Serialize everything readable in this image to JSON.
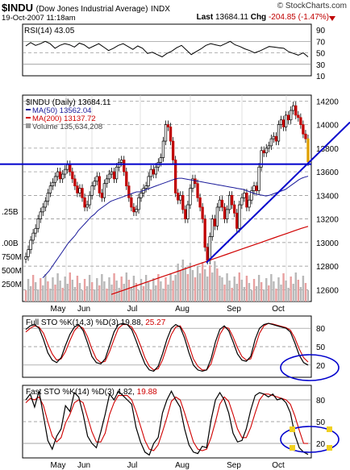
{
  "header": {
    "symbol": "$INDU",
    "name": "(Dow Jones Industrial Average)",
    "exchange": "INDX",
    "brand": "© StockCharts.com",
    "date": "19-Oct-2007 11:18am",
    "last_label": "Last",
    "last_value": "13684.11",
    "chg_label": "Chg",
    "chg_value": "-204.85 (-1.47%)"
  },
  "chart_data": [
    {
      "type": "line",
      "panel": "rsi",
      "legend": "RSI(14) 43.05",
      "ylim": [
        10,
        100
      ],
      "yticks": [
        "90",
        "70",
        "50",
        "30",
        "10"
      ],
      "values": [
        62,
        68,
        63,
        66,
        70,
        66,
        58,
        63,
        66,
        64,
        60,
        67,
        64,
        58,
        62,
        66,
        60,
        54,
        58,
        63,
        66,
        61,
        56,
        62,
        58,
        49,
        51,
        47,
        43,
        49,
        53,
        59,
        63,
        55,
        47,
        52,
        57,
        63,
        66,
        64,
        62,
        66,
        70,
        64,
        61,
        57,
        54,
        50,
        53,
        57,
        61,
        60,
        59,
        58,
        52,
        49,
        46,
        50,
        43
      ]
    },
    {
      "type": "candlestick",
      "panel": "price",
      "legend": [
        "$INDU (Daily) 13684.11",
        "MA(50) 13562.04",
        "MA(200) 13137.72",
        "Volume 135,634,208"
      ],
      "ylim": [
        12500,
        14250
      ],
      "yticks": [
        "14200",
        "14000",
        "13800",
        "13600",
        "13400",
        "13200",
        "13000",
        "12800",
        "12600"
      ],
      "left_axis_labels": [
        ".25B",
        ".00B",
        "750M",
        "500M",
        "250M"
      ],
      "months": [
        "May",
        "Jun",
        "Jul",
        "Aug",
        "Sep",
        "Oct"
      ],
      "close": [
        12880,
        12940,
        13020,
        13080,
        13120,
        13200,
        13260,
        13300,
        13350,
        13420,
        13480,
        13510,
        13560,
        13600,
        13540,
        13580,
        13620,
        13660,
        13600,
        13540,
        13480,
        13420,
        13460,
        13380,
        13300,
        13320,
        13400,
        13480,
        13520,
        13560,
        13420,
        13380,
        13500,
        13540,
        13580,
        13600,
        13540,
        13640,
        13680,
        13700,
        13600,
        13480,
        13380,
        13300,
        13260,
        13280,
        13380,
        13420,
        13460,
        13480,
        13560,
        13620,
        13580,
        13640,
        13680,
        13720,
        13860,
        14000,
        13980,
        13860,
        13700,
        13420,
        13360,
        13400,
        13280,
        13200,
        13320,
        13460,
        13540,
        13500,
        13380,
        13300,
        13200,
        12960,
        12850,
        13050,
        13200,
        13140,
        13300,
        13360,
        13300,
        13200,
        13280,
        13400,
        13320,
        13250,
        13120,
        13320,
        13380,
        13420,
        13300,
        13360,
        13440,
        13480,
        13440,
        13640,
        13780,
        13760,
        13800,
        13820,
        13880,
        13900,
        13860,
        14000,
        14040,
        13980,
        14080,
        14040,
        14120,
        14160,
        14080,
        14060,
        14000,
        13920,
        13880,
        13684
      ],
      "ma50": [
        12700,
        12730,
        12760,
        12800,
        12840,
        12880,
        12920,
        12960,
        13000,
        13030,
        13060,
        13100,
        13130,
        13160,
        13190,
        13220,
        13240,
        13270,
        13290,
        13310,
        13330,
        13350,
        13360,
        13370,
        13380,
        13390,
        13400,
        13410,
        13420,
        13430,
        13430,
        13440,
        13450,
        13460,
        13470,
        13480,
        13490,
        13500,
        13510,
        13520,
        13530,
        13540,
        13545,
        13545,
        13540,
        13535,
        13530,
        13525,
        13520,
        13515,
        13510,
        13505,
        13500,
        13495,
        13490,
        13485,
        13480,
        13475,
        13470,
        13465,
        13460,
        13455,
        13450,
        13440,
        13430,
        13420,
        13410,
        13405,
        13400,
        13395,
        13400,
        13410,
        13420,
        13430,
        13440,
        13450,
        13470,
        13490,
        13510,
        13530,
        13545,
        13555,
        13562
      ],
      "ma200": [
        12560,
        12580,
        12600,
        12620,
        12640,
        12660,
        12680,
        12700,
        12720,
        12740,
        12760,
        12780,
        12800,
        12820,
        12840,
        12860,
        12880,
        12900,
        12920,
        12940,
        12960,
        12980,
        13000,
        13020,
        13040,
        13060,
        13080,
        13100,
        13120,
        13137
      ]
    },
    {
      "type": "line",
      "panel": "full-sto",
      "legend": [
        "Full STO %K(14,3)",
        "%D(3)",
        "19.88",
        "25.27"
      ],
      "ylim": [
        0,
        100
      ],
      "yticks": [
        "80",
        "50",
        "20"
      ],
      "series": [
        {
          "name": "%K(14,3)",
          "values": [
            78,
            84,
            86,
            80,
            62,
            40,
            28,
            24,
            32,
            52,
            70,
            82,
            86,
            76,
            56,
            34,
            24,
            22,
            30,
            52,
            74,
            86,
            88,
            86,
            78,
            60,
            40,
            22,
            12,
            10,
            18,
            38,
            62,
            80,
            86,
            82,
            64,
            40,
            20,
            12,
            10,
            12,
            30,
            58,
            78,
            84,
            76,
            58,
            38,
            28,
            26,
            34,
            62,
            80,
            86,
            88,
            86,
            84,
            82,
            80,
            74,
            56,
            36,
            24,
            20
          ]
        },
        {
          "name": "%D(3)",
          "values": [
            74,
            80,
            84,
            82,
            72,
            54,
            38,
            28,
            30,
            42,
            60,
            76,
            84,
            80,
            66,
            46,
            30,
            24,
            26,
            42,
            62,
            80,
            86,
            86,
            82,
            70,
            52,
            32,
            18,
            12,
            14,
            28,
            50,
            70,
            82,
            84,
            72,
            52,
            30,
            18,
            12,
            12,
            22,
            46,
            70,
            82,
            80,
            66,
            48,
            34,
            28,
            30,
            50,
            72,
            84,
            88,
            87,
            85,
            83,
            81,
            77,
            64,
            46,
            32,
            25
          ]
        }
      ]
    },
    {
      "type": "line",
      "panel": "fast-sto",
      "legend": [
        "Fast STO %K(14)",
        "%D(3)",
        "4.82",
        "19.88"
      ],
      "ylim": [
        0,
        100
      ],
      "yticks": [
        "80",
        "50",
        "20"
      ],
      "series": [
        {
          "name": "%K(14)",
          "values": [
            80,
            88,
            70,
            92,
            58,
            24,
            12,
            30,
            40,
            72,
            64,
            90,
            84,
            60,
            30,
            20,
            14,
            36,
            60,
            88,
            80,
            92,
            86,
            80,
            74,
            42,
            22,
            8,
            4,
            20,
            28,
            62,
            80,
            92,
            80,
            70,
            40,
            18,
            8,
            6,
            16,
            14,
            52,
            80,
            90,
            80,
            62,
            34,
            22,
            24,
            40,
            66,
            86,
            90,
            88,
            84,
            88,
            80,
            82,
            76,
            62,
            32,
            14,
            8,
            4.82
          ]
        },
        {
          "name": "%D(3)",
          "values": [
            76,
            82,
            80,
            84,
            72,
            50,
            30,
            22,
            28,
            48,
            60,
            76,
            80,
            76,
            56,
            36,
            22,
            22,
            34,
            60,
            76,
            86,
            86,
            86,
            80,
            64,
            44,
            24,
            12,
            10,
            18,
            36,
            56,
            78,
            84,
            80,
            62,
            42,
            22,
            12,
            10,
            12,
            28,
            50,
            74,
            84,
            78,
            60,
            40,
            28,
            28,
            42,
            62,
            80,
            88,
            88,
            86,
            84,
            82,
            80,
            74,
            58,
            38,
            20,
            19.88
          ]
        }
      ]
    }
  ]
}
